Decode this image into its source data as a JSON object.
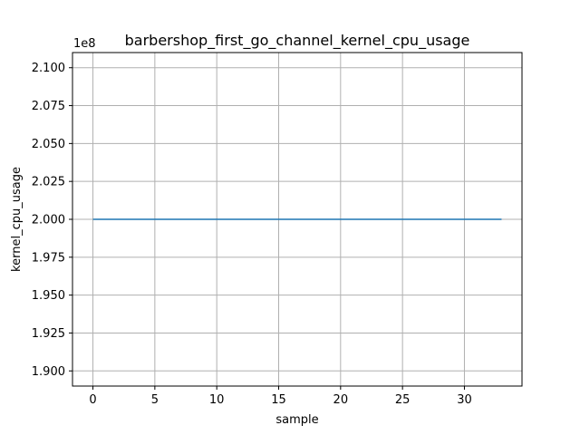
{
  "chart_data": {
    "type": "line",
    "title": "barbershop_first_go_channel_kernel_cpu_usage",
    "xlabel": "sample",
    "ylabel": "kernel_cpu_usage",
    "y_offset_label": "1e8",
    "xlim": [
      -1.65,
      34.65
    ],
    "ylim": [
      189000000,
      211000000
    ],
    "x_ticks": [
      0,
      5,
      10,
      15,
      20,
      25,
      30
    ],
    "x_tick_labels": [
      "0",
      "5",
      "10",
      "15",
      "20",
      "25",
      "30"
    ],
    "y_ticks": [
      190000000,
      192500000,
      195000000,
      197500000,
      200000000,
      202500000,
      205000000,
      207500000,
      210000000
    ],
    "y_tick_labels": [
      "1.900",
      "1.925",
      "1.950",
      "1.975",
      "2.000",
      "2.025",
      "2.050",
      "2.075",
      "2.100"
    ],
    "grid": true,
    "series": [
      {
        "color": "#1f77b4",
        "x": [
          0,
          1,
          2,
          3,
          4,
          5,
          6,
          7,
          8,
          9,
          10,
          11,
          12,
          13,
          14,
          15,
          16,
          17,
          18,
          19,
          20,
          21,
          22,
          23,
          24,
          25,
          26,
          27,
          28,
          29,
          30,
          31,
          32,
          33
        ],
        "y": [
          200000000,
          200000000,
          200000000,
          200000000,
          200000000,
          200000000,
          200000000,
          200000000,
          200000000,
          200000000,
          200000000,
          200000000,
          200000000,
          200000000,
          200000000,
          200000000,
          200000000,
          200000000,
          200000000,
          200000000,
          200000000,
          200000000,
          200000000,
          200000000,
          200000000,
          200000000,
          200000000,
          200000000,
          200000000,
          200000000,
          200000000,
          200000000,
          200000000,
          200000000
        ]
      }
    ]
  }
}
